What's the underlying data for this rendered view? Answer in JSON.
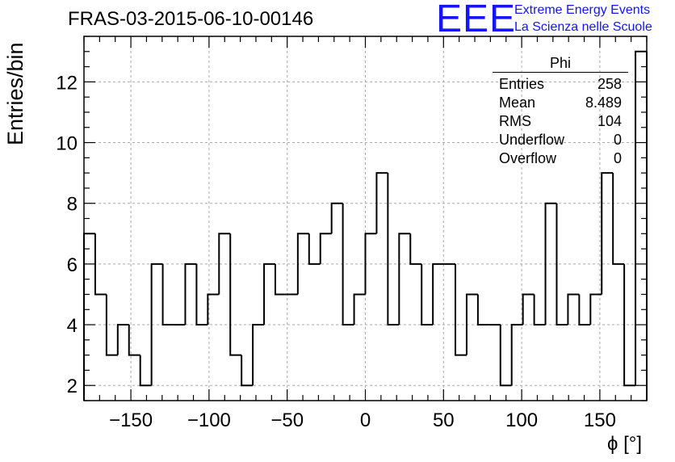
{
  "chart_data": {
    "type": "bar",
    "style": "step-histogram",
    "title": "FRAS-03-2015-06-10-00146",
    "xlabel": "ϕ [°]",
    "ylabel": "Entries/bin",
    "xlim": [
      -180,
      180
    ],
    "ylim": [
      1.5,
      13.5
    ],
    "bin_width": 7.2,
    "x_ticks": [
      -150,
      -100,
      -50,
      0,
      50,
      100,
      150
    ],
    "y_ticks": [
      2,
      4,
      6,
      8,
      10,
      12
    ],
    "grid": true,
    "values": [
      7,
      5,
      3,
      4,
      3,
      2,
      6,
      4,
      4,
      6,
      4,
      5,
      7,
      3,
      2,
      4,
      6,
      5,
      5,
      7,
      6,
      7,
      8,
      4,
      5,
      7,
      9,
      4,
      7,
      6,
      4,
      6,
      6,
      3,
      5,
      4,
      4,
      2,
      4,
      5,
      4,
      8,
      4,
      5,
      4,
      5,
      9,
      6,
      2,
      13
    ],
    "colors": {
      "line": "#000000",
      "grid": "#aaaaaa"
    }
  },
  "stats_box": {
    "name": "Phi",
    "rows": [
      {
        "label": "Entries",
        "value": "258"
      },
      {
        "label": "Mean",
        "value": "8.489"
      },
      {
        "label": "RMS",
        "value": "104"
      },
      {
        "label": "Underflow",
        "value": "0"
      },
      {
        "label": "Overflow",
        "value": "0"
      }
    ]
  },
  "branding": {
    "logo": "EEE",
    "line1": "Extreme Energy Events",
    "line2": "La Scienza nelle Scuole",
    "color": "#1414ff"
  }
}
